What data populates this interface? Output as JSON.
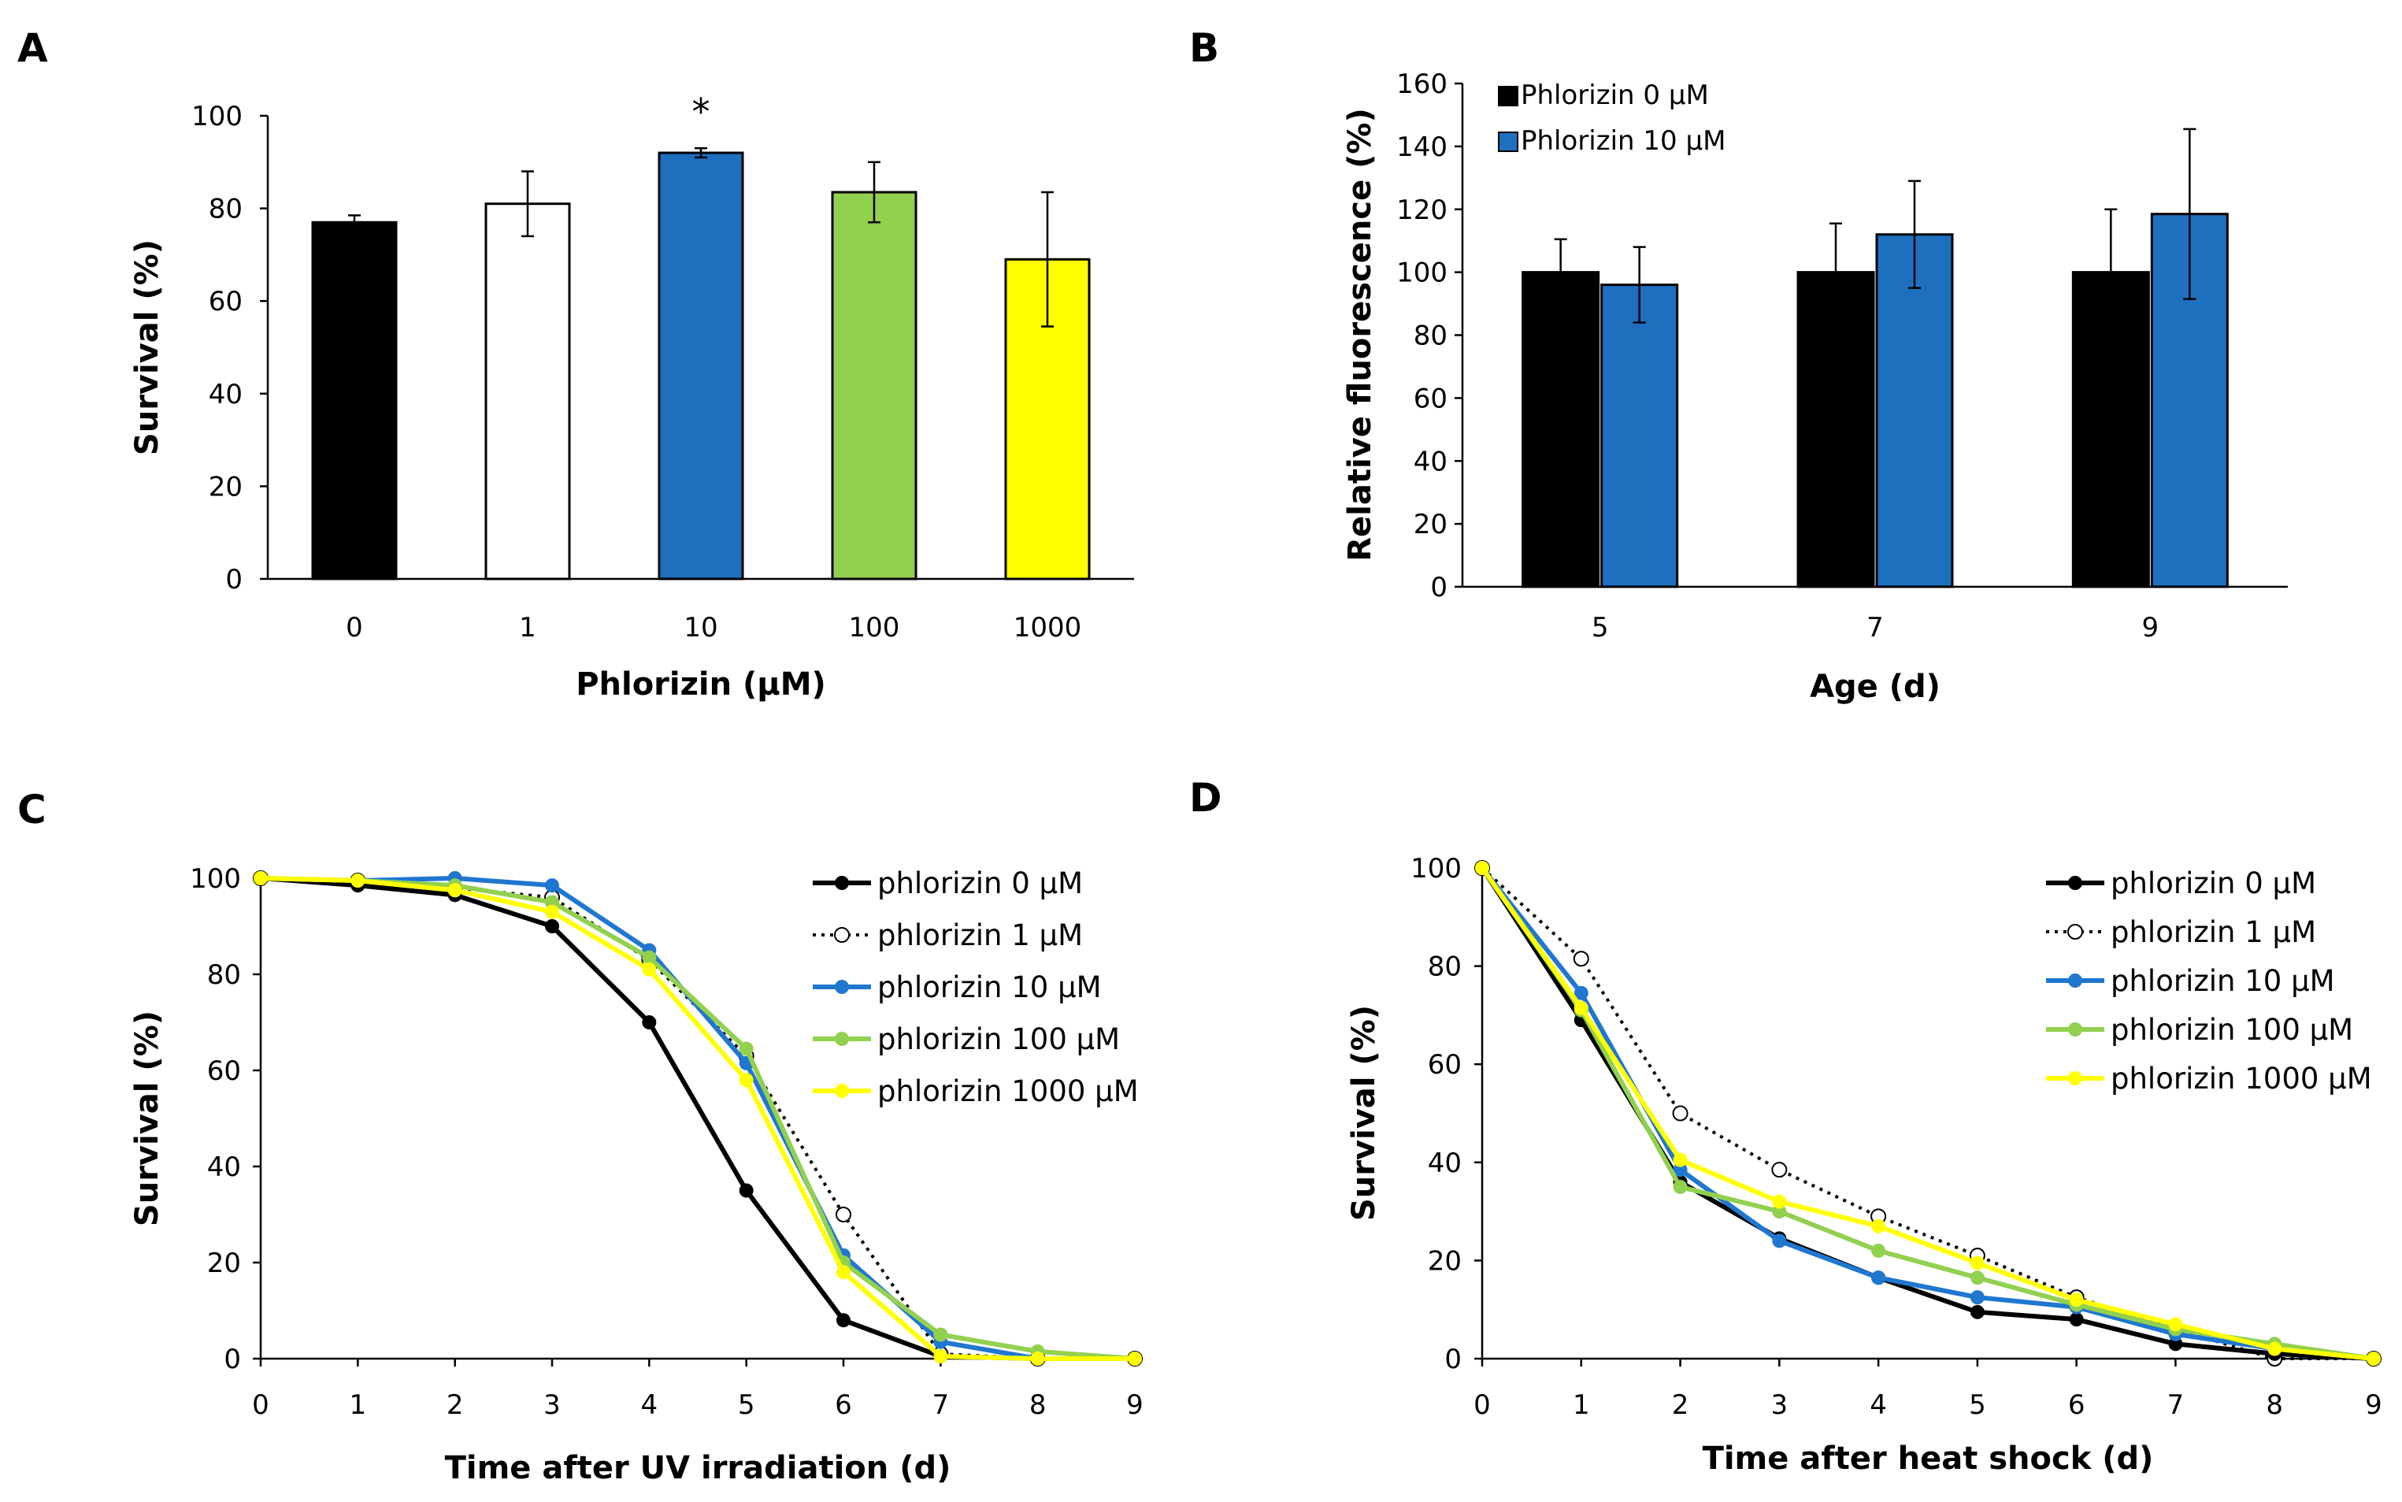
{
  "chart_data": [
    {
      "panel": "A",
      "type": "bar",
      "xlabel": "Phlorizin (μM)",
      "ylabel": "Survival (%)",
      "categories": [
        "0",
        "1",
        "10",
        "100",
        "1000"
      ],
      "values": [
        77,
        81,
        92,
        83.5,
        69
      ],
      "errors": [
        1.5,
        7,
        1,
        6.5,
        14.5
      ],
      "colors": [
        "#000000",
        "#ffffff",
        "#1f6fbf",
        "#92d050",
        "#ffff00"
      ],
      "annotations": [
        {
          "category": "10",
          "text": "*"
        }
      ],
      "ylim": [
        0,
        100
      ],
      "yticks": [
        0,
        20,
        40,
        60,
        80,
        100
      ]
    },
    {
      "panel": "B",
      "type": "bar",
      "xlabel": "Age (d)",
      "ylabel": "Relative fluorescence (%)",
      "categories": [
        "5",
        "7",
        "9"
      ],
      "series": [
        {
          "name": "Phlorizin 0 μM",
          "color": "#000000",
          "values": [
            100,
            100,
            100
          ],
          "errors": [
            10.5,
            15.5,
            20
          ]
        },
        {
          "name": "Phlorizin 10 μM",
          "color": "#1f6fbf",
          "values": [
            96,
            112,
            118.5
          ],
          "errors": [
            12,
            17,
            27
          ]
        }
      ],
      "ylim": [
        0,
        160
      ],
      "yticks": [
        0,
        20,
        40,
        60,
        80,
        100,
        120,
        140,
        160
      ],
      "legend": "top-left"
    },
    {
      "panel": "C",
      "type": "line",
      "xlabel": "Time after UV irradiation (d)",
      "ylabel": "Survival (%)",
      "x": [
        0,
        1,
        2,
        3,
        4,
        5,
        6,
        7,
        8,
        9
      ],
      "series": [
        {
          "name": "phlorizin 0 μM",
          "color": "#000000",
          "style": "solid",
          "marker": "filled",
          "values": [
            100,
            98.5,
            96.5,
            90,
            70,
            35,
            8,
            0.5,
            0,
            0
          ]
        },
        {
          "name": "phlorizin 1 μM",
          "color": "#000000",
          "style": "dotted",
          "marker": "open",
          "values": [
            100,
            99.5,
            98,
            96,
            83,
            63,
            30,
            1,
            0,
            0
          ]
        },
        {
          "name": "phlorizin 10 μM",
          "color": "#1f77d0",
          "style": "solid",
          "marker": "filled",
          "values": [
            100,
            99.5,
            100,
            98.5,
            85,
            61.5,
            21.5,
            3.5,
            0,
            0
          ]
        },
        {
          "name": "phlorizin 100 μM",
          "color": "#92d050",
          "style": "solid",
          "marker": "filled",
          "values": [
            100,
            99.5,
            98.5,
            95,
            83.5,
            64.5,
            20,
            5,
            1.5,
            0
          ]
        },
        {
          "name": "phlorizin 1000 μM",
          "color": "#ffff00",
          "style": "solid",
          "marker": "filled",
          "values": [
            100,
            99.5,
            97.5,
            93,
            81,
            58,
            18,
            0.5,
            0,
            0
          ]
        }
      ],
      "xlim": [
        0,
        9
      ],
      "ylim": [
        0,
        100
      ],
      "xticks": [
        0,
        1,
        2,
        3,
        4,
        5,
        6,
        7,
        8,
        9
      ],
      "yticks": [
        0,
        20,
        40,
        60,
        80,
        100
      ],
      "legend": "top-right"
    },
    {
      "panel": "D",
      "type": "line",
      "xlabel": "Time after heat shock (d)",
      "ylabel": "Survival (%)",
      "x": [
        0,
        1,
        2,
        3,
        4,
        5,
        6,
        7,
        8,
        9
      ],
      "series": [
        {
          "name": "phlorizin 0 μM",
          "color": "#000000",
          "style": "solid",
          "marker": "filled",
          "values": [
            100,
            69,
            36,
            24.5,
            16.5,
            9.5,
            8,
            3,
            1,
            0
          ]
        },
        {
          "name": "phlorizin 1 μM",
          "color": "#000000",
          "style": "dotted",
          "marker": "open",
          "values": [
            100,
            81.5,
            50,
            38.5,
            29,
            21,
            12.5,
            6,
            0,
            0
          ]
        },
        {
          "name": "phlorizin 10 μM",
          "color": "#1f77d0",
          "style": "solid",
          "marker": "filled",
          "values": [
            100,
            74.5,
            38.5,
            24,
            16.5,
            12.5,
            10.5,
            5,
            2,
            0
          ]
        },
        {
          "name": "phlorizin 100 μM",
          "color": "#92d050",
          "style": "solid",
          "marker": "filled",
          "values": [
            100,
            71,
            35,
            30,
            22,
            16.5,
            11,
            6,
            3,
            0
          ]
        },
        {
          "name": "phlorizin 1000 μM",
          "color": "#ffff00",
          "style": "solid",
          "marker": "filled",
          "values": [
            100,
            71.5,
            40.5,
            32,
            27,
            19.5,
            12,
            7,
            2,
            0
          ]
        }
      ],
      "xlim": [
        0,
        9
      ],
      "ylim": [
        0,
        100
      ],
      "xticks": [
        0,
        1,
        2,
        3,
        4,
        5,
        6,
        7,
        8,
        9
      ],
      "yticks": [
        0,
        20,
        40,
        60,
        80,
        100
      ],
      "legend": "top-right"
    }
  ]
}
